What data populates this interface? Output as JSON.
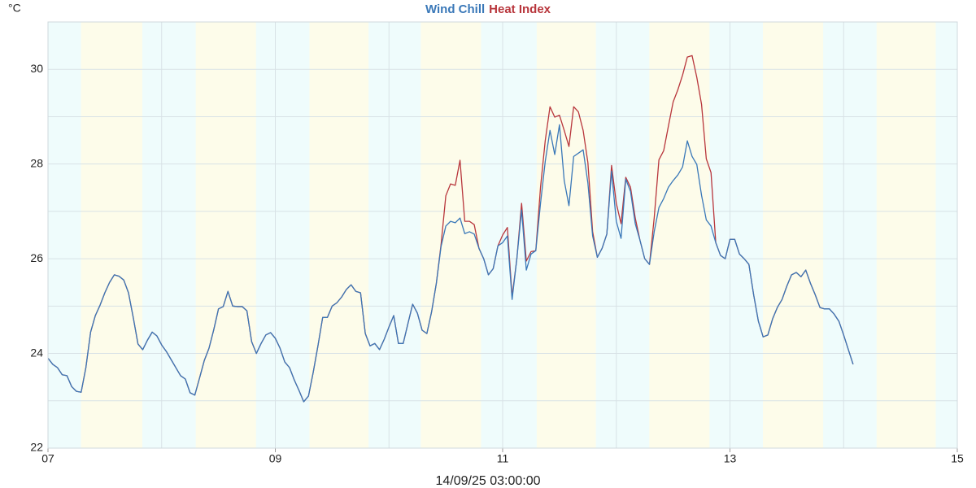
{
  "chart_data": {
    "type": "line",
    "y_unit": "°C",
    "x_label": "14/09/25 03:00:00",
    "xlim": [
      7,
      15
    ],
    "xticks": [
      {
        "value": 7,
        "label": "07"
      },
      {
        "value": 9,
        "label": "09"
      },
      {
        "value": 11,
        "label": "11"
      },
      {
        "value": 13,
        "label": "13"
      },
      {
        "value": 15,
        "label": "15"
      }
    ],
    "xminor": [
      8,
      10,
      12,
      14
    ],
    "ylim": [
      22,
      31
    ],
    "yticks": [
      22,
      24,
      26,
      28,
      30
    ],
    "yminor": [
      23,
      25,
      27,
      29
    ],
    "grid": true,
    "background_color": "#effcfc",
    "shade_color": "#fdfcea",
    "shading": [
      [
        7.29,
        7.83
      ],
      [
        8.3,
        8.83
      ],
      [
        9.3,
        9.82
      ],
      [
        10.28,
        10.81
      ],
      [
        11.3,
        11.82
      ],
      [
        12.29,
        12.82
      ],
      [
        13.29,
        13.82
      ],
      [
        14.29,
        14.81
      ]
    ],
    "x": [
      7,
      7.0417,
      7.0833,
      7.125,
      7.1667,
      7.2083,
      7.25,
      7.2917,
      7.3333,
      7.375,
      7.4167,
      7.4583,
      7.5,
      7.5417,
      7.5833,
      7.625,
      7.6667,
      7.7083,
      7.75,
      7.7917,
      7.8333,
      7.875,
      7.9167,
      7.9583,
      8,
      8.0417,
      8.0833,
      8.125,
      8.1667,
      8.2083,
      8.25,
      8.2917,
      8.3333,
      8.375,
      8.4167,
      8.4583,
      8.5,
      8.5417,
      8.5833,
      8.625,
      8.6667,
      8.7083,
      8.75,
      8.7917,
      8.8333,
      8.875,
      8.9167,
      8.9583,
      9,
      9.0417,
      9.0833,
      9.125,
      9.1667,
      9.2083,
      9.25,
      9.2917,
      9.3333,
      9.375,
      9.4167,
      9.4583,
      9.5,
      9.5417,
      9.5833,
      9.625,
      9.6667,
      9.7083,
      9.75,
      9.7917,
      9.8333,
      9.875,
      9.9167,
      9.9583,
      10,
      10.0417,
      10.0833,
      10.125,
      10.1667,
      10.2083,
      10.25,
      10.2917,
      10.3333,
      10.375,
      10.4167,
      10.4583,
      10.5,
      10.5417,
      10.5833,
      10.625,
      10.6667,
      10.7083,
      10.75,
      10.7917,
      10.8333,
      10.875,
      10.9167,
      10.9583,
      11,
      11.0417,
      11.0833,
      11.125,
      11.1667,
      11.2083,
      11.25,
      11.2917,
      11.3333,
      11.375,
      11.4167,
      11.4583,
      11.5,
      11.5417,
      11.5833,
      11.625,
      11.6667,
      11.7083,
      11.75,
      11.7917,
      11.8333,
      11.875,
      11.9167,
      11.9583,
      12,
      12.0417,
      12.0833,
      12.125,
      12.1667,
      12.2083,
      12.25,
      12.2917,
      12.3333,
      12.375,
      12.4167,
      12.4583,
      12.5,
      12.5417,
      12.5833,
      12.625,
      12.6667,
      12.7083,
      12.75,
      12.7917,
      12.8333,
      12.875,
      12.9167,
      12.9583,
      13,
      13.0417,
      13.0833,
      13.125,
      13.1667,
      13.2083,
      13.25,
      13.2917,
      13.3333,
      13.375,
      13.4167,
      13.4583,
      13.5,
      13.5417,
      13.5833,
      13.625,
      13.6667,
      13.7083,
      13.75,
      13.7917,
      13.8333,
      13.875,
      13.9167,
      13.9583,
      14,
      14.0417,
      14.0833
    ],
    "series": [
      {
        "name": "Wind Chill",
        "color": "#3a78b8",
        "values": [
          23.9,
          23.77,
          23.7,
          23.55,
          23.53,
          23.3,
          23.2,
          23.18,
          23.7,
          24.45,
          24.8,
          25.02,
          25.28,
          25.5,
          25.66,
          25.63,
          25.55,
          25.28,
          24.76,
          24.2,
          24.08,
          24.28,
          24.45,
          24.37,
          24.18,
          24.04,
          23.87,
          23.7,
          23.53,
          23.46,
          23.17,
          23.12,
          23.48,
          23.85,
          24.11,
          24.5,
          24.94,
          24.99,
          25.31,
          25.0,
          24.99,
          24.99,
          24.9,
          24.25,
          24.0,
          24.21,
          24.39,
          24.44,
          24.32,
          24.11,
          23.82,
          23.7,
          23.44,
          23.22,
          22.98,
          23.1,
          23.6,
          24.16,
          24.76,
          24.76,
          25.0,
          25.07,
          25.19,
          25.35,
          25.45,
          25.31,
          25.28,
          24.42,
          24.16,
          24.21,
          24.08,
          24.3,
          24.56,
          24.8,
          24.21,
          24.21,
          24.63,
          25.04,
          24.85,
          24.49,
          24.42,
          24.88,
          25.48,
          26.26,
          26.69,
          26.79,
          26.76,
          26.86,
          26.53,
          26.57,
          26.52,
          26.22,
          26.0,
          25.66,
          25.79,
          26.27,
          26.34,
          26.48,
          25.14,
          26.0,
          27.03,
          25.76,
          26.1,
          26.17,
          27.17,
          28.06,
          28.71,
          28.2,
          28.83,
          27.65,
          27.12,
          28.16,
          28.23,
          28.3,
          27.6,
          26.48,
          26.03,
          26.22,
          26.52,
          27.85,
          26.79,
          26.43,
          27.68,
          27.42,
          26.74,
          26.39,
          26.0,
          25.88,
          26.57,
          27.08,
          27.27,
          27.51,
          27.65,
          27.77,
          27.94,
          28.49,
          28.16,
          27.99,
          27.34,
          26.82,
          26.69,
          26.34,
          26.07,
          26.0,
          26.41,
          26.41,
          26.1,
          26.0,
          25.88,
          25.24,
          24.68,
          24.35,
          24.39,
          24.73,
          24.97,
          25.14,
          25.42,
          25.66,
          25.71,
          25.62,
          25.76,
          25.48,
          25.24,
          24.97,
          24.94,
          24.94,
          24.83,
          24.68,
          24.39,
          24.08,
          23.77
        ]
      },
      {
        "name": "Heat Index",
        "color": "#b8363c",
        "values": [
          23.9,
          23.77,
          23.7,
          23.55,
          23.53,
          23.3,
          23.2,
          23.18,
          23.7,
          24.45,
          24.8,
          25.02,
          25.28,
          25.5,
          25.66,
          25.63,
          25.55,
          25.28,
          24.76,
          24.2,
          24.08,
          24.28,
          24.45,
          24.37,
          24.18,
          24.04,
          23.87,
          23.7,
          23.53,
          23.46,
          23.17,
          23.12,
          23.48,
          23.85,
          24.11,
          24.5,
          24.94,
          24.99,
          25.31,
          25.0,
          24.99,
          24.99,
          24.9,
          24.25,
          24.0,
          24.21,
          24.39,
          24.44,
          24.32,
          24.11,
          23.82,
          23.7,
          23.44,
          23.22,
          22.98,
          23.1,
          23.6,
          24.16,
          24.76,
          24.76,
          25.0,
          25.07,
          25.19,
          25.35,
          25.45,
          25.31,
          25.28,
          24.42,
          24.16,
          24.21,
          24.08,
          24.3,
          24.56,
          24.8,
          24.21,
          24.21,
          24.63,
          25.04,
          24.85,
          24.49,
          24.42,
          24.88,
          25.48,
          26.3,
          27.33,
          27.58,
          27.55,
          28.08,
          26.79,
          26.79,
          26.72,
          26.22,
          26.0,
          25.66,
          25.79,
          26.27,
          26.5,
          26.66,
          25.2,
          26.0,
          27.17,
          25.95,
          26.15,
          26.17,
          27.51,
          28.5,
          29.21,
          28.99,
          29.03,
          28.71,
          28.37,
          29.21,
          29.1,
          28.71,
          28.03,
          26.57,
          26.03,
          26.22,
          26.52,
          27.97,
          27.17,
          26.74,
          27.72,
          27.51,
          26.86,
          26.39,
          26.0,
          25.88,
          26.86,
          28.09,
          28.28,
          28.8,
          29.31,
          29.57,
          29.88,
          30.26,
          30.29,
          29.83,
          29.26,
          28.11,
          27.82,
          26.34,
          26.07,
          26.0,
          26.41,
          26.41,
          26.1,
          26.0,
          25.88,
          25.24,
          24.68,
          24.35,
          24.39,
          24.73,
          24.97,
          25.14,
          25.42,
          25.66,
          25.71,
          25.62,
          25.76,
          25.48,
          25.24,
          24.97,
          24.94,
          24.94,
          24.83,
          24.68,
          24.39,
          24.08,
          23.77
        ]
      }
    ]
  }
}
